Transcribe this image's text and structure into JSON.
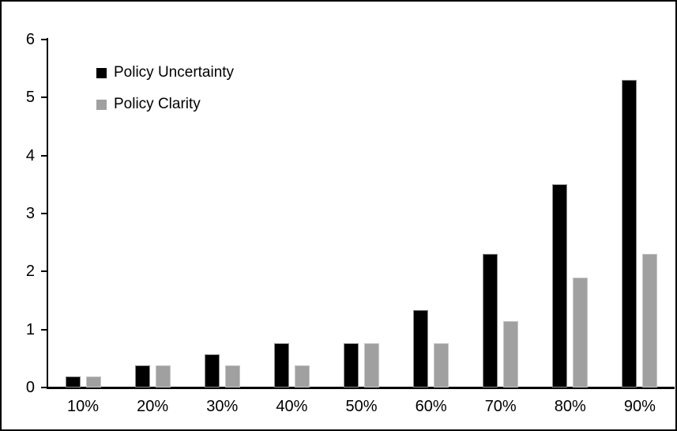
{
  "chart_data": {
    "type": "bar",
    "title": "",
    "xlabel": "",
    "ylabel": "",
    "categories": [
      "10%",
      "20%",
      "30%",
      "40%",
      "50%",
      "60%",
      "70%",
      "80%",
      "90%"
    ],
    "series": [
      {
        "name": "Policy Uncertainty",
        "color": "#000000",
        "values": [
          0.19,
          0.38,
          0.57,
          0.77,
          0.77,
          1.33,
          2.3,
          3.5,
          5.3
        ]
      },
      {
        "name": "Policy Clarity",
        "color": "#a0a0a0",
        "values": [
          0.19,
          0.38,
          0.38,
          0.38,
          0.77,
          0.77,
          1.15,
          1.9,
          2.3
        ]
      }
    ],
    "ylim": [
      0,
      6
    ],
    "yticks": [
      0,
      1,
      2,
      3,
      4,
      5,
      6
    ],
    "grid": false,
    "legend_position": "top-left",
    "frame_color": "#000000",
    "background_color": "#ffffff"
  }
}
